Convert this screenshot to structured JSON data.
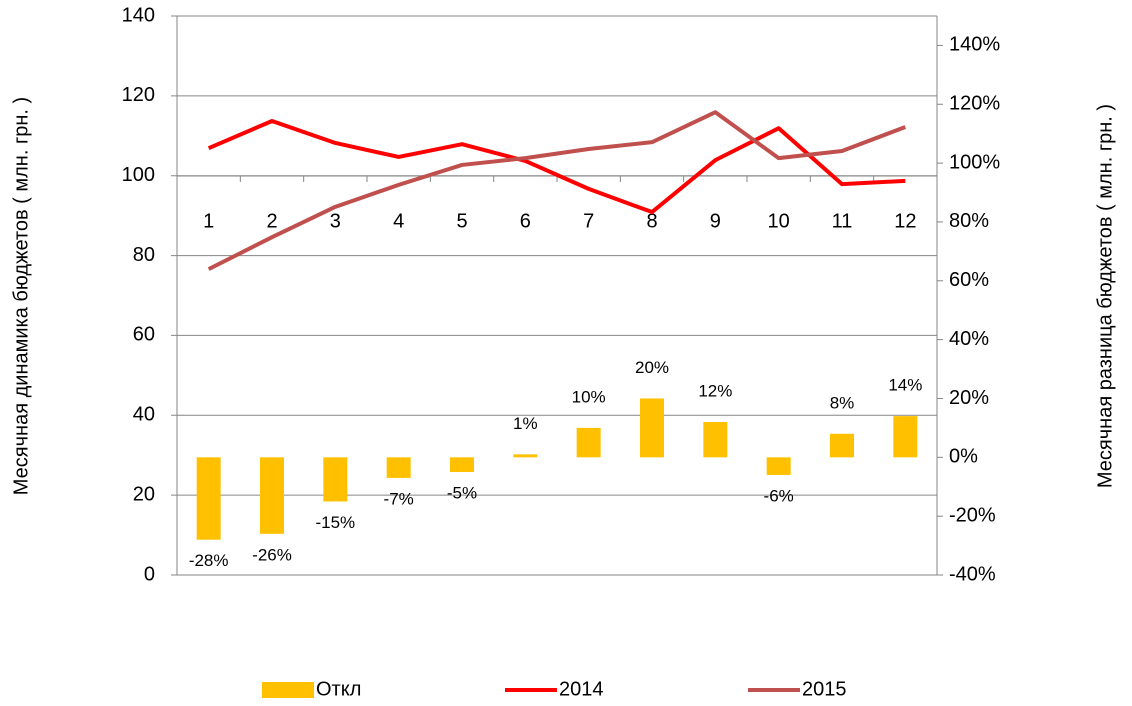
{
  "chart_data": {
    "type": "bar_line",
    "ylabel": "Месячная динамика бюджетов ( млн. грн. )",
    "y2label": "Месячная разница бюджетов  ( млн. грн. )",
    "categories": [
      "1",
      "2",
      "3",
      "4",
      "5",
      "6",
      "7",
      "8",
      "9",
      "10",
      "11",
      "12"
    ],
    "ylim": [
      0,
      140
    ],
    "yticks": [
      0,
      20,
      40,
      60,
      80,
      100,
      120,
      140
    ],
    "y2lim": [
      -40,
      150
    ],
    "y2ticks": [
      {
        "value": -40,
        "label": "-40%"
      },
      {
        "value": -20,
        "label": "-20%"
      },
      {
        "value": 0,
        "label": "0%"
      },
      {
        "value": 20,
        "label": "20%"
      },
      {
        "value": 40,
        "label": "40%"
      },
      {
        "value": 60,
        "label": "60%"
      },
      {
        "value": 80,
        "label": "80%"
      },
      {
        "value": 100,
        "label": "100%"
      },
      {
        "value": 120,
        "label": "120%"
      },
      {
        "value": 140,
        "label": "140%"
      }
    ],
    "grid": true,
    "legend": "bottom",
    "series": [
      {
        "name": "Откл",
        "type": "bar",
        "axis": "y2",
        "color": "#FFC000",
        "values": [
          -28,
          -26,
          -15,
          -7,
          -5,
          1,
          10,
          20,
          12,
          -6,
          8,
          14
        ],
        "value_labels": [
          "-28%",
          "-26%",
          "-15%",
          "-7%",
          "-5%",
          "1%",
          "10%",
          "20%",
          "12%",
          "-6%",
          "8%",
          "14%"
        ]
      },
      {
        "name": "2014",
        "type": "line",
        "color": "#FF0000",
        "values": [
          106.9,
          113.7,
          108.2,
          104.7,
          107.9,
          103.7,
          96.7,
          90.9,
          103.9,
          111.9,
          97.9,
          98.7
        ]
      },
      {
        "name": "2015",
        "type": "line",
        "color": "#C0504D",
        "values": [
          76.6,
          84.6,
          92.2,
          97.7,
          102.7,
          104.4,
          106.7,
          108.4,
          115.9,
          104.4,
          106.2,
          112.2
        ]
      }
    ]
  }
}
